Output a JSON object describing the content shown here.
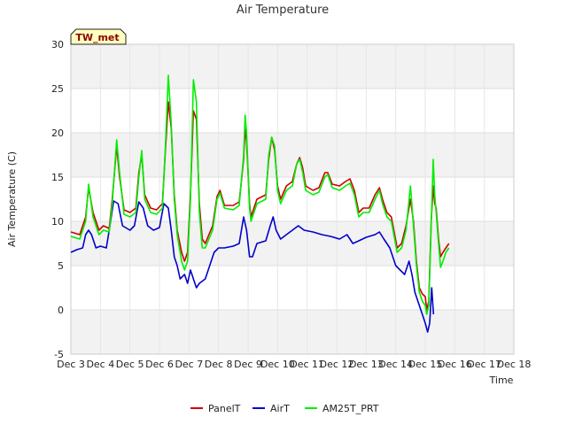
{
  "chart_data": {
    "type": "line",
    "title": "Air Temperature",
    "xlabel": "Time",
    "ylabel": "Air Temperature (C)",
    "badge": "TW_met",
    "xlim": [
      3,
      18
    ],
    "ylim": [
      -5,
      30
    ],
    "y_ticks": [
      -5,
      0,
      5,
      10,
      15,
      20,
      25,
      30
    ],
    "x_ticks": [
      3,
      4,
      5,
      6,
      7,
      8,
      9,
      10,
      11,
      12,
      13,
      14,
      15,
      16,
      17,
      18
    ],
    "x_tick_labels": [
      "Dec 3",
      "Dec 4",
      "Dec 5",
      "Dec 6",
      "Dec 7",
      "Dec 8",
      "Dec 9",
      "Dec 10",
      "Dec 11",
      "Dec 12",
      "Dec 13",
      "Dec 14",
      "Dec 15",
      "Dec 16",
      "Dec 17",
      "Dec 18"
    ],
    "shaded_bands": [
      [
        -5,
        0
      ],
      [
        5,
        10
      ],
      [
        15,
        20
      ],
      [
        25,
        30
      ]
    ],
    "legend_position": "bottom",
    "series": [
      {
        "name": "PanelT",
        "color": "#cc0000",
        "points": [
          [
            3.0,
            8.8
          ],
          [
            3.3,
            8.5
          ],
          [
            3.5,
            10.5
          ],
          [
            3.6,
            13.8
          ],
          [
            3.75,
            11.0
          ],
          [
            3.95,
            9.0
          ],
          [
            4.1,
            9.5
          ],
          [
            4.3,
            9.2
          ],
          [
            4.4,
            12.5
          ],
          [
            4.55,
            18.5
          ],
          [
            4.65,
            15.0
          ],
          [
            4.8,
            11.3
          ],
          [
            5.0,
            11.0
          ],
          [
            5.2,
            11.5
          ],
          [
            5.3,
            15.5
          ],
          [
            5.4,
            17.5
          ],
          [
            5.5,
            13.0
          ],
          [
            5.7,
            11.5
          ],
          [
            5.9,
            11.3
          ],
          [
            6.1,
            12.0
          ],
          [
            6.2,
            18.0
          ],
          [
            6.3,
            23.5
          ],
          [
            6.4,
            20.5
          ],
          [
            6.5,
            13.0
          ],
          [
            6.6,
            9.0
          ],
          [
            6.75,
            6.5
          ],
          [
            6.85,
            5.5
          ],
          [
            6.95,
            6.5
          ],
          [
            7.05,
            13.0
          ],
          [
            7.15,
            22.5
          ],
          [
            7.25,
            21.5
          ],
          [
            7.35,
            12.0
          ],
          [
            7.45,
            8.0
          ],
          [
            7.55,
            7.5
          ],
          [
            7.8,
            9.5
          ],
          [
            7.95,
            12.8
          ],
          [
            8.05,
            13.5
          ],
          [
            8.2,
            11.8
          ],
          [
            8.5,
            11.8
          ],
          [
            8.7,
            12.2
          ],
          [
            8.85,
            17.0
          ],
          [
            8.9,
            20.5
          ],
          [
            8.95,
            19.0
          ],
          [
            9.05,
            12.0
          ],
          [
            9.1,
            10.5
          ],
          [
            9.3,
            12.5
          ],
          [
            9.6,
            13.0
          ],
          [
            9.7,
            17.0
          ],
          [
            9.8,
            19.5
          ],
          [
            9.9,
            18.0
          ],
          [
            10.0,
            14.0
          ],
          [
            10.1,
            12.5
          ],
          [
            10.3,
            14.0
          ],
          [
            10.5,
            14.5
          ],
          [
            10.65,
            16.5
          ],
          [
            10.75,
            17.2
          ],
          [
            10.85,
            16.0
          ],
          [
            10.95,
            14.0
          ],
          [
            11.2,
            13.5
          ],
          [
            11.4,
            13.8
          ],
          [
            11.6,
            15.5
          ],
          [
            11.7,
            15.5
          ],
          [
            11.85,
            14.2
          ],
          [
            12.1,
            14.0
          ],
          [
            12.3,
            14.5
          ],
          [
            12.45,
            14.8
          ],
          [
            12.6,
            13.5
          ],
          [
            12.75,
            11.0
          ],
          [
            12.9,
            11.5
          ],
          [
            13.1,
            11.5
          ],
          [
            13.3,
            13.0
          ],
          [
            13.45,
            13.8
          ],
          [
            13.55,
            12.5
          ],
          [
            13.7,
            11.0
          ],
          [
            13.85,
            10.5
          ],
          [
            14.05,
            7.0
          ],
          [
            14.2,
            7.5
          ],
          [
            14.35,
            9.5
          ],
          [
            14.5,
            12.5
          ],
          [
            14.6,
            10.0
          ],
          [
            14.7,
            5.5
          ],
          [
            14.8,
            2.5
          ],
          [
            14.9,
            1.8
          ],
          [
            15.0,
            1.5
          ],
          [
            15.05,
            0.0
          ],
          [
            15.12,
            1.0
          ],
          [
            15.2,
            10.0
          ],
          [
            15.27,
            14.0
          ],
          [
            15.32,
            12.0
          ],
          [
            15.37,
            11.5
          ],
          [
            15.45,
            8.0
          ],
          [
            15.52,
            6.0
          ],
          [
            15.6,
            6.5
          ],
          [
            15.7,
            7.0
          ],
          [
            15.8,
            7.5
          ]
        ]
      },
      {
        "name": "AirT",
        "color": "#0000cc",
        "points": [
          [
            3.0,
            6.5
          ],
          [
            3.2,
            6.8
          ],
          [
            3.4,
            7.0
          ],
          [
            3.5,
            8.5
          ],
          [
            3.6,
            9.0
          ],
          [
            3.7,
            8.5
          ],
          [
            3.85,
            7.0
          ],
          [
            4.0,
            7.2
          ],
          [
            4.2,
            7.0
          ],
          [
            4.3,
            9.0
          ],
          [
            4.45,
            12.3
          ],
          [
            4.6,
            12.0
          ],
          [
            4.75,
            9.5
          ],
          [
            5.0,
            9.0
          ],
          [
            5.15,
            9.5
          ],
          [
            5.3,
            12.2
          ],
          [
            5.45,
            11.5
          ],
          [
            5.6,
            9.5
          ],
          [
            5.8,
            9.0
          ],
          [
            6.0,
            9.3
          ],
          [
            6.15,
            12.0
          ],
          [
            6.3,
            11.5
          ],
          [
            6.4,
            9.0
          ],
          [
            6.5,
            6.0
          ],
          [
            6.6,
            5.0
          ],
          [
            6.7,
            3.5
          ],
          [
            6.85,
            4.0
          ],
          [
            6.95,
            3.0
          ],
          [
            7.05,
            4.5
          ],
          [
            7.15,
            3.5
          ],
          [
            7.25,
            2.5
          ],
          [
            7.35,
            3.0
          ],
          [
            7.55,
            3.5
          ],
          [
            7.7,
            5.0
          ],
          [
            7.85,
            6.5
          ],
          [
            8.0,
            7.0
          ],
          [
            8.2,
            7.0
          ],
          [
            8.5,
            7.2
          ],
          [
            8.7,
            7.5
          ],
          [
            8.85,
            10.5
          ],
          [
            8.95,
            9.0
          ],
          [
            9.05,
            6.0
          ],
          [
            9.15,
            6.0
          ],
          [
            9.3,
            7.5
          ],
          [
            9.6,
            7.8
          ],
          [
            9.75,
            9.5
          ],
          [
            9.85,
            10.5
          ],
          [
            9.95,
            9.0
          ],
          [
            10.1,
            8.0
          ],
          [
            10.3,
            8.5
          ],
          [
            10.5,
            9.0
          ],
          [
            10.7,
            9.5
          ],
          [
            10.9,
            9.0
          ],
          [
            11.2,
            8.8
          ],
          [
            11.5,
            8.5
          ],
          [
            11.8,
            8.3
          ],
          [
            12.1,
            8.0
          ],
          [
            12.35,
            8.5
          ],
          [
            12.55,
            7.5
          ],
          [
            12.75,
            7.8
          ],
          [
            13.0,
            8.2
          ],
          [
            13.3,
            8.5
          ],
          [
            13.45,
            8.8
          ],
          [
            13.6,
            8.0
          ],
          [
            13.8,
            7.0
          ],
          [
            14.0,
            5.0
          ],
          [
            14.15,
            4.5
          ],
          [
            14.3,
            4.0
          ],
          [
            14.45,
            5.5
          ],
          [
            14.55,
            4.0
          ],
          [
            14.65,
            2.0
          ],
          [
            14.8,
            0.5
          ],
          [
            14.9,
            -0.5
          ],
          [
            15.0,
            -1.5
          ],
          [
            15.08,
            -2.5
          ],
          [
            15.15,
            -1.5
          ],
          [
            15.22,
            2.5
          ],
          [
            15.28,
            -0.5
          ]
        ]
      },
      {
        "name": "AM25T_PRT",
        "color": "#00ee00",
        "points": [
          [
            3.0,
            8.3
          ],
          [
            3.3,
            8.0
          ],
          [
            3.5,
            10.0
          ],
          [
            3.6,
            14.2
          ],
          [
            3.75,
            10.5
          ],
          [
            3.95,
            8.5
          ],
          [
            4.1,
            9.0
          ],
          [
            4.3,
            8.8
          ],
          [
            4.4,
            12.0
          ],
          [
            4.55,
            19.2
          ],
          [
            4.65,
            15.5
          ],
          [
            4.8,
            10.8
          ],
          [
            5.0,
            10.5
          ],
          [
            5.2,
            11.0
          ],
          [
            5.3,
            15.0
          ],
          [
            5.4,
            18.0
          ],
          [
            5.5,
            12.5
          ],
          [
            5.7,
            11.0
          ],
          [
            5.9,
            10.8
          ],
          [
            6.1,
            11.5
          ],
          [
            6.2,
            18.5
          ],
          [
            6.3,
            26.5
          ],
          [
            6.4,
            21.0
          ],
          [
            6.5,
            12.5
          ],
          [
            6.6,
            8.5
          ],
          [
            6.75,
            5.5
          ],
          [
            6.85,
            4.5
          ],
          [
            6.95,
            5.5
          ],
          [
            7.05,
            12.5
          ],
          [
            7.15,
            26.0
          ],
          [
            7.25,
            23.5
          ],
          [
            7.35,
            11.0
          ],
          [
            7.45,
            7.0
          ],
          [
            7.55,
            7.0
          ],
          [
            7.8,
            9.0
          ],
          [
            7.95,
            12.5
          ],
          [
            8.05,
            13.2
          ],
          [
            8.2,
            11.5
          ],
          [
            8.5,
            11.3
          ],
          [
            8.7,
            11.8
          ],
          [
            8.85,
            17.5
          ],
          [
            8.9,
            22.0
          ],
          [
            8.95,
            20.0
          ],
          [
            9.05,
            11.5
          ],
          [
            9.1,
            10.0
          ],
          [
            9.3,
            12.0
          ],
          [
            9.6,
            12.5
          ],
          [
            9.7,
            17.5
          ],
          [
            9.8,
            19.5
          ],
          [
            9.9,
            18.5
          ],
          [
            10.0,
            13.5
          ],
          [
            10.1,
            12.0
          ],
          [
            10.3,
            13.5
          ],
          [
            10.5,
            14.0
          ],
          [
            10.65,
            16.5
          ],
          [
            10.75,
            17.0
          ],
          [
            10.85,
            15.5
          ],
          [
            10.95,
            13.5
          ],
          [
            11.2,
            13.0
          ],
          [
            11.4,
            13.3
          ],
          [
            11.6,
            15.0
          ],
          [
            11.7,
            15.3
          ],
          [
            11.85,
            13.8
          ],
          [
            12.1,
            13.5
          ],
          [
            12.3,
            14.0
          ],
          [
            12.45,
            14.3
          ],
          [
            12.6,
            13.0
          ],
          [
            12.75,
            10.5
          ],
          [
            12.9,
            11.0
          ],
          [
            13.1,
            11.0
          ],
          [
            13.3,
            12.5
          ],
          [
            13.45,
            13.5
          ],
          [
            13.55,
            12.0
          ],
          [
            13.7,
            10.5
          ],
          [
            13.85,
            10.0
          ],
          [
            14.05,
            6.5
          ],
          [
            14.2,
            7.0
          ],
          [
            14.35,
            9.0
          ],
          [
            14.5,
            14.0
          ],
          [
            14.6,
            9.5
          ],
          [
            14.7,
            5.0
          ],
          [
            14.8,
            2.0
          ],
          [
            14.9,
            1.0
          ],
          [
            15.0,
            0.5
          ],
          [
            15.05,
            -0.5
          ],
          [
            15.12,
            0.5
          ],
          [
            15.2,
            9.5
          ],
          [
            15.27,
            17.0
          ],
          [
            15.32,
            13.0
          ],
          [
            15.37,
            11.0
          ],
          [
            15.45,
            7.5
          ],
          [
            15.52,
            4.8
          ],
          [
            15.6,
            5.5
          ],
          [
            15.7,
            6.5
          ],
          [
            15.8,
            7.0
          ]
        ]
      }
    ]
  }
}
